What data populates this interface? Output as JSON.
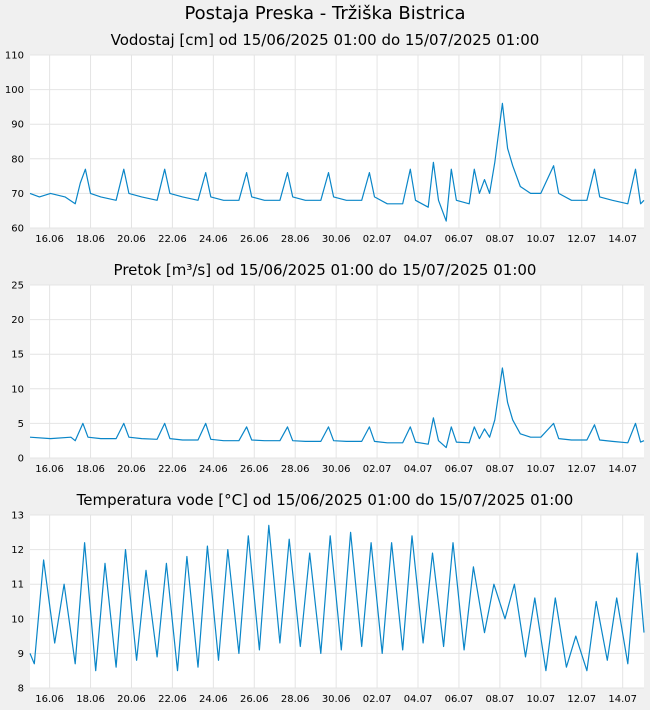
{
  "page": {
    "title": "Postaja Preska - Tržiška Bistrica"
  },
  "colors": {
    "line": "#0a86c8",
    "grid": "#e4e4e4",
    "plot_bg": "#ffffff",
    "page_bg": "#f0f0f0"
  },
  "chart_data": [
    {
      "type": "line",
      "title": "Vodostaj [cm] od 15/06/2025 01:00 do 15/07/2025 01:00",
      "xlabel": "",
      "ylabel": "",
      "x_range": [
        "2025-06-15 01:00",
        "2025-07-15 01:00"
      ],
      "ylim": [
        60,
        110
      ],
      "yticks": [
        60,
        70,
        80,
        90,
        100,
        110
      ],
      "xticks": [
        "16.06",
        "18.06",
        "20.06",
        "22.06",
        "24.06",
        "26.06",
        "28.06",
        "30.06",
        "02.07",
        "04.07",
        "06.07",
        "08.07",
        "10.07",
        "12.07",
        "14.07"
      ],
      "grid": true,
      "series": [
        {
          "values": [
            [
              "2025-06-15 01:00",
              70
            ],
            [
              "2025-06-15 12:00",
              69
            ],
            [
              "2025-06-16 01:00",
              70
            ],
            [
              "2025-06-16 18:00",
              69
            ],
            [
              "2025-06-17 06:00",
              67
            ],
            [
              "2025-06-17 12:00",
              73
            ],
            [
              "2025-06-17 18:00",
              77
            ],
            [
              "2025-06-18 00:00",
              70
            ],
            [
              "2025-06-18 12:00",
              69
            ],
            [
              "2025-06-19 06:00",
              68
            ],
            [
              "2025-06-19 15:00",
              77
            ],
            [
              "2025-06-19 21:00",
              70
            ],
            [
              "2025-06-20 12:00",
              69
            ],
            [
              "2025-06-21 06:00",
              68
            ],
            [
              "2025-06-21 15:00",
              77
            ],
            [
              "2025-06-21 21:00",
              70
            ],
            [
              "2025-06-22 12:00",
              69
            ],
            [
              "2025-06-23 06:00",
              68
            ],
            [
              "2025-06-23 15:00",
              76
            ],
            [
              "2025-06-23 21:00",
              69
            ],
            [
              "2025-06-24 12:00",
              68
            ],
            [
              "2025-06-25 06:00",
              68
            ],
            [
              "2025-06-25 15:00",
              76
            ],
            [
              "2025-06-25 21:00",
              69
            ],
            [
              "2025-06-26 12:00",
              68
            ],
            [
              "2025-06-27 06:00",
              68
            ],
            [
              "2025-06-27 15:00",
              76
            ],
            [
              "2025-06-27 21:00",
              69
            ],
            [
              "2025-06-28 12:00",
              68
            ],
            [
              "2025-06-29 06:00",
              68
            ],
            [
              "2025-06-29 15:00",
              76
            ],
            [
              "2025-06-29 21:00",
              69
            ],
            [
              "2025-06-30 12:00",
              68
            ],
            [
              "2025-07-01 06:00",
              68
            ],
            [
              "2025-07-01 15:00",
              76
            ],
            [
              "2025-07-01 21:00",
              69
            ],
            [
              "2025-07-02 12:00",
              67
            ],
            [
              "2025-07-03 06:00",
              67
            ],
            [
              "2025-07-03 15:00",
              77
            ],
            [
              "2025-07-03 21:00",
              68
            ],
            [
              "2025-07-04 12:00",
              66
            ],
            [
              "2025-07-04 18:00",
              79
            ],
            [
              "2025-07-05 00:00",
              68
            ],
            [
              "2025-07-05 09:00",
              62
            ],
            [
              "2025-07-05 15:00",
              77
            ],
            [
              "2025-07-05 21:00",
              68
            ],
            [
              "2025-07-06 12:00",
              67
            ],
            [
              "2025-07-06 18:00",
              77
            ],
            [
              "2025-07-07 00:00",
              70
            ],
            [
              "2025-07-07 06:00",
              74
            ],
            [
              "2025-07-07 12:00",
              70
            ],
            [
              "2025-07-07 18:00",
              79
            ],
            [
              "2025-07-08 03:00",
              96
            ],
            [
              "2025-07-08 09:00",
              83
            ],
            [
              "2025-07-08 15:00",
              78
            ],
            [
              "2025-07-09 00:00",
              72
            ],
            [
              "2025-07-09 12:00",
              70
            ],
            [
              "2025-07-10 00:00",
              70
            ],
            [
              "2025-07-10 15:00",
              78
            ],
            [
              "2025-07-10 21:00",
              70
            ],
            [
              "2025-07-11 12:00",
              68
            ],
            [
              "2025-07-12 06:00",
              68
            ],
            [
              "2025-07-12 15:00",
              77
            ],
            [
              "2025-07-12 21:00",
              69
            ],
            [
              "2025-07-13 12:00",
              68
            ],
            [
              "2025-07-14 06:00",
              67
            ],
            [
              "2025-07-14 15:00",
              77
            ],
            [
              "2025-07-14 21:00",
              67
            ],
            [
              "2025-07-15 01:00",
              68
            ]
          ]
        }
      ]
    },
    {
      "type": "line",
      "title": "Pretok [m³/s] od 15/06/2025 01:00 do 15/07/2025 01:00",
      "xlabel": "",
      "ylabel": "",
      "x_range": [
        "2025-06-15 01:00",
        "2025-07-15 01:00"
      ],
      "ylim": [
        0,
        25
      ],
      "yticks": [
        0,
        5,
        10,
        15,
        20,
        25
      ],
      "xticks": [
        "16.06",
        "18.06",
        "20.06",
        "22.06",
        "24.06",
        "26.06",
        "28.06",
        "30.06",
        "02.07",
        "04.07",
        "06.07",
        "08.07",
        "10.07",
        "12.07",
        "14.07"
      ],
      "grid": true,
      "series": [
        {
          "values": [
            [
              "2025-06-15 01:00",
              3
            ],
            [
              "2025-06-16 01:00",
              2.8
            ],
            [
              "2025-06-17 01:00",
              3
            ],
            [
              "2025-06-17 06:00",
              2.5
            ],
            [
              "2025-06-17 15:00",
              5
            ],
            [
              "2025-06-17 21:00",
              3
            ],
            [
              "2025-06-18 12:00",
              2.8
            ],
            [
              "2025-06-19 06:00",
              2.8
            ],
            [
              "2025-06-19 15:00",
              5
            ],
            [
              "2025-06-19 21:00",
              3
            ],
            [
              "2025-06-20 12:00",
              2.8
            ],
            [
              "2025-06-21 06:00",
              2.7
            ],
            [
              "2025-06-21 15:00",
              5
            ],
            [
              "2025-06-21 21:00",
              2.8
            ],
            [
              "2025-06-22 12:00",
              2.6
            ],
            [
              "2025-06-23 06:00",
              2.6
            ],
            [
              "2025-06-23 15:00",
              5
            ],
            [
              "2025-06-23 21:00",
              2.7
            ],
            [
              "2025-06-24 12:00",
              2.5
            ],
            [
              "2025-06-25 06:00",
              2.5
            ],
            [
              "2025-06-25 15:00",
              4.5
            ],
            [
              "2025-06-25 21:00",
              2.6
            ],
            [
              "2025-06-26 12:00",
              2.5
            ],
            [
              "2025-06-27 06:00",
              2.5
            ],
            [
              "2025-06-27 15:00",
              4.5
            ],
            [
              "2025-06-27 21:00",
              2.5
            ],
            [
              "2025-06-28 12:00",
              2.4
            ],
            [
              "2025-06-29 06:00",
              2.4
            ],
            [
              "2025-06-29 15:00",
              4.5
            ],
            [
              "2025-06-29 21:00",
              2.5
            ],
            [
              "2025-06-30 12:00",
              2.4
            ],
            [
              "2025-07-01 06:00",
              2.4
            ],
            [
              "2025-07-01 15:00",
              4.5
            ],
            [
              "2025-07-01 21:00",
              2.4
            ],
            [
              "2025-07-02 12:00",
              2.2
            ],
            [
              "2025-07-03 06:00",
              2.2
            ],
            [
              "2025-07-03 15:00",
              4.5
            ],
            [
              "2025-07-03 21:00",
              2.3
            ],
            [
              "2025-07-04 12:00",
              2
            ],
            [
              "2025-07-04 18:00",
              5.8
            ],
            [
              "2025-07-05 00:00",
              2.5
            ],
            [
              "2025-07-05 09:00",
              1.5
            ],
            [
              "2025-07-05 15:00",
              4.5
            ],
            [
              "2025-07-05 21:00",
              2.3
            ],
            [
              "2025-07-06 12:00",
              2.2
            ],
            [
              "2025-07-06 18:00",
              4.5
            ],
            [
              "2025-07-07 00:00",
              2.8
            ],
            [
              "2025-07-07 06:00",
              4.2
            ],
            [
              "2025-07-07 12:00",
              3
            ],
            [
              "2025-07-07 18:00",
              5.5
            ],
            [
              "2025-07-08 03:00",
              13
            ],
            [
              "2025-07-08 09:00",
              8
            ],
            [
              "2025-07-08 15:00",
              5.5
            ],
            [
              "2025-07-09 00:00",
              3.5
            ],
            [
              "2025-07-09 12:00",
              3
            ],
            [
              "2025-07-10 00:00",
              3
            ],
            [
              "2025-07-10 15:00",
              5
            ],
            [
              "2025-07-10 21:00",
              2.8
            ],
            [
              "2025-07-11 12:00",
              2.6
            ],
            [
              "2025-07-12 06:00",
              2.6
            ],
            [
              "2025-07-12 15:00",
              4.8
            ],
            [
              "2025-07-12 21:00",
              2.6
            ],
            [
              "2025-07-13 12:00",
              2.4
            ],
            [
              "2025-07-14 06:00",
              2.2
            ],
            [
              "2025-07-14 15:00",
              5
            ],
            [
              "2025-07-14 21:00",
              2.3
            ],
            [
              "2025-07-15 01:00",
              2.5
            ]
          ]
        }
      ]
    },
    {
      "type": "line",
      "title": "Temperatura vode [°C] od 15/06/2025 01:00 do 15/07/2025 01:00",
      "xlabel": "",
      "ylabel": "",
      "x_range": [
        "2025-06-15 01:00",
        "2025-07-15 01:00"
      ],
      "ylim": [
        8,
        13
      ],
      "yticks": [
        8,
        9,
        10,
        11,
        12,
        13
      ],
      "xticks": [
        "16.06",
        "18.06",
        "20.06",
        "22.06",
        "24.06",
        "26.06",
        "28.06",
        "30.06",
        "02.07",
        "04.07",
        "06.07",
        "08.07",
        "10.07",
        "12.07",
        "14.07"
      ],
      "grid": true,
      "series": [
        {
          "values": [
            [
              "2025-06-15 01:00",
              9.0
            ],
            [
              "2025-06-15 06:00",
              8.7
            ],
            [
              "2025-06-15 17:00",
              11.7
            ],
            [
              "2025-06-16 06:00",
              9.3
            ],
            [
              "2025-06-16 17:00",
              11.0
            ],
            [
              "2025-06-17 06:00",
              8.7
            ],
            [
              "2025-06-17 17:00",
              12.2
            ],
            [
              "2025-06-18 06:00",
              8.5
            ],
            [
              "2025-06-18 17:00",
              11.6
            ],
            [
              "2025-06-19 06:00",
              8.6
            ],
            [
              "2025-06-19 17:00",
              12.0
            ],
            [
              "2025-06-20 06:00",
              8.8
            ],
            [
              "2025-06-20 17:00",
              11.4
            ],
            [
              "2025-06-21 06:00",
              8.9
            ],
            [
              "2025-06-21 17:00",
              11.6
            ],
            [
              "2025-06-22 06:00",
              8.5
            ],
            [
              "2025-06-22 17:00",
              11.8
            ],
            [
              "2025-06-23 06:00",
              8.6
            ],
            [
              "2025-06-23 17:00",
              12.1
            ],
            [
              "2025-06-24 06:00",
              8.8
            ],
            [
              "2025-06-24 17:00",
              12.0
            ],
            [
              "2025-06-25 06:00",
              9.0
            ],
            [
              "2025-06-25 17:00",
              12.4
            ],
            [
              "2025-06-26 06:00",
              9.1
            ],
            [
              "2025-06-26 17:00",
              12.7
            ],
            [
              "2025-06-27 06:00",
              9.3
            ],
            [
              "2025-06-27 17:00",
              12.3
            ],
            [
              "2025-06-28 06:00",
              9.2
            ],
            [
              "2025-06-28 17:00",
              11.9
            ],
            [
              "2025-06-29 06:00",
              9.0
            ],
            [
              "2025-06-29 17:00",
              12.4
            ],
            [
              "2025-06-30 06:00",
              9.1
            ],
            [
              "2025-06-30 17:00",
              12.5
            ],
            [
              "2025-07-01 06:00",
              9.2
            ],
            [
              "2025-07-01 17:00",
              12.2
            ],
            [
              "2025-07-02 06:00",
              9.0
            ],
            [
              "2025-07-02 17:00",
              12.2
            ],
            [
              "2025-07-03 06:00",
              9.1
            ],
            [
              "2025-07-03 17:00",
              12.4
            ],
            [
              "2025-07-04 06:00",
              9.3
            ],
            [
              "2025-07-04 17:00",
              11.9
            ],
            [
              "2025-07-05 06:00",
              9.2
            ],
            [
              "2025-07-05 17:00",
              12.2
            ],
            [
              "2025-07-06 06:00",
              9.1
            ],
            [
              "2025-07-06 17:00",
              11.5
            ],
            [
              "2025-07-07 06:00",
              9.6
            ],
            [
              "2025-07-07 17:00",
              11.0
            ],
            [
              "2025-07-08 06:00",
              10.0
            ],
            [
              "2025-07-08 17:00",
              11.0
            ],
            [
              "2025-07-09 06:00",
              8.9
            ],
            [
              "2025-07-09 17:00",
              10.6
            ],
            [
              "2025-07-10 06:00",
              8.5
            ],
            [
              "2025-07-10 17:00",
              10.6
            ],
            [
              "2025-07-11 06:00",
              8.6
            ],
            [
              "2025-07-11 17:00",
              9.5
            ],
            [
              "2025-07-12 06:00",
              8.5
            ],
            [
              "2025-07-12 17:00",
              10.5
            ],
            [
              "2025-07-13 06:00",
              8.8
            ],
            [
              "2025-07-13 17:00",
              10.6
            ],
            [
              "2025-07-14 06:00",
              8.7
            ],
            [
              "2025-07-14 17:00",
              11.9
            ],
            [
              "2025-07-15 01:00",
              9.6
            ]
          ]
        }
      ]
    }
  ]
}
